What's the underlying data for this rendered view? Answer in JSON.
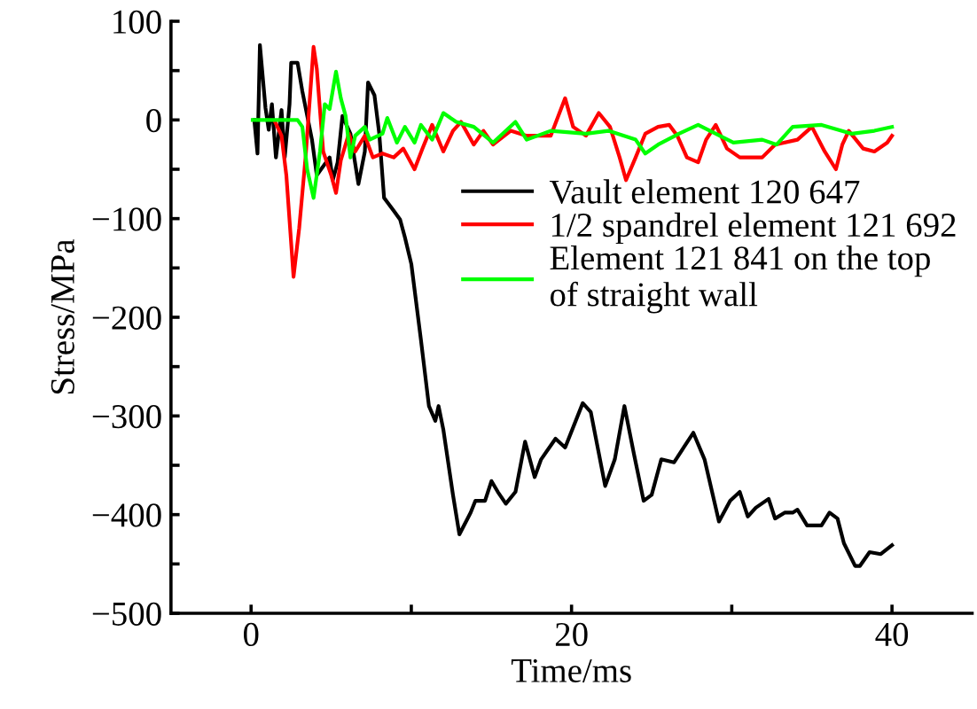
{
  "chart_data": {
    "type": "line",
    "xlabel": "Time/ms",
    "ylabel": "Stress/MPa",
    "xlim": [
      -5,
      45
    ],
    "ylim": [
      -500,
      100
    ],
    "xticks": [
      0,
      {
        "value": 10,
        "label": null
      },
      20,
      {
        "value": 30,
        "label": null
      },
      40
    ],
    "yticks": [
      {
        "value": -500,
        "label": "−500"
      },
      {
        "value": -450,
        "label": null
      },
      {
        "value": -400,
        "label": "−400"
      },
      {
        "value": -350,
        "label": null
      },
      {
        "value": -300,
        "label": "−300"
      },
      {
        "value": -250,
        "label": null
      },
      {
        "value": -200,
        "label": "−200"
      },
      {
        "value": -150,
        "label": null
      },
      {
        "value": -100,
        "label": "−100"
      },
      {
        "value": -50,
        "label": null
      },
      0,
      {
        "value": 50,
        "label": null
      },
      100
    ],
    "grid": false,
    "legend": "center right",
    "marker": "none",
    "line_style": "solid",
    "series": [
      {
        "name": "Vault element 120 647",
        "color": "#000000",
        "x": [
          0.2,
          0.4,
          0.55,
          0.9,
          1.1,
          1.3,
          1.55,
          1.9,
          2.1,
          2.4,
          2.5,
          2.9,
          3.2,
          3.8,
          4.1,
          4.9,
          5.1,
          5.4,
          5.7,
          6.2,
          6.7,
          7.1,
          7.3,
          7.7,
          8.0,
          8.3,
          8.9,
          9.3,
          9.6,
          10.0,
          10.6,
          11.1,
          11.5,
          11.7,
          12.0,
          12.6,
          13.0,
          13.7,
          14.0,
          14.6,
          15.0,
          15.4,
          15.9,
          16.5,
          17.1,
          17.7,
          18.1,
          19.0,
          19.6,
          20.7,
          21.2,
          22.1,
          22.7,
          23.3,
          23.9,
          24.5,
          25.0,
          25.6,
          26.4,
          27.0,
          27.6,
          28.3,
          29.2,
          29.9,
          30.5,
          31.0,
          31.5,
          32.3,
          32.7,
          33.3,
          33.8,
          34.1,
          34.7,
          35.6,
          36.1,
          36.6,
          37.0,
          37.7,
          38.0,
          38.6,
          39.3,
          40.0
        ],
        "values": [
          0,
          -34,
          76,
          12,
          -10,
          16,
          -38,
          10,
          -38,
          16,
          58,
          58,
          29,
          -20,
          -56,
          -38,
          -61,
          -43,
          4,
          -14,
          -65,
          -32,
          38,
          25,
          -14,
          -79,
          -92,
          -101,
          -119,
          -146,
          -223,
          -290,
          -305,
          -290,
          -314,
          -380,
          -420,
          -398,
          -386,
          -386,
          -366,
          -377,
          -389,
          -377,
          -326,
          -362,
          -344,
          -323,
          -332,
          -287,
          -296,
          -371,
          -344,
          -290,
          -339,
          -386,
          -380,
          -344,
          -347,
          -332,
          -317,
          -344,
          -407,
          -386,
          -377,
          -402,
          -393,
          -384,
          -404,
          -398,
          -398,
          -395,
          -411,
          -411,
          -398,
          -404,
          -429,
          -452,
          -452,
          -438,
          -440,
          -431
        ]
      },
      {
        "name": "1/2 spandrel element 121 692",
        "color": "#ff0000",
        "x": [
          1.5,
          1.9,
          2.2,
          2.65,
          3.0,
          3.4,
          3.9,
          4.1,
          4.5,
          5.0,
          5.3,
          5.6,
          6.1,
          6.5,
          7.1,
          7.6,
          8.2,
          8.9,
          9.5,
          10.2,
          10.7,
          11.3,
          12.0,
          12.6,
          13.1,
          13.9,
          14.5,
          15.1,
          16.2,
          17.2,
          18.7,
          19.6,
          20.1,
          20.9,
          21.7,
          22.4,
          23.0,
          23.4,
          24.0,
          24.6,
          25.4,
          26.1,
          26.6,
          27.2,
          27.9,
          28.4,
          29.0,
          29.7,
          30.5,
          31.9,
          32.7,
          34.1,
          35.0,
          35.8,
          36.5,
          36.9,
          37.3,
          38.2,
          38.9,
          39.7,
          40.0
        ],
        "values": [
          -2,
          -16,
          -56,
          -159,
          -110,
          -38,
          74,
          52,
          -32,
          -56,
          -74,
          -41,
          -14,
          -32,
          -16,
          -38,
          -34,
          -38,
          -29,
          -50,
          -29,
          -5,
          -32,
          -11,
          -2,
          -25,
          -11,
          -25,
          -11,
          -16,
          -16,
          22,
          -7,
          -16,
          7,
          -7,
          -38,
          -61,
          -38,
          -14,
          -7,
          -5,
          -16,
          -38,
          -43,
          -20,
          -5,
          -29,
          -38,
          -38,
          -25,
          -20,
          -7,
          -32,
          -50,
          -25,
          -11,
          -29,
          -32,
          -23,
          -16
        ]
      },
      {
        "name": "Element 121 841 on the top\nof straight wall",
        "color": "#00ff00",
        "x": [
          0.1,
          2.9,
          3.2,
          3.5,
          3.9,
          4.3,
          4.6,
          4.9,
          5.3,
          5.6,
          5.9,
          6.2,
          6.5,
          7.1,
          7.4,
          8.2,
          8.5,
          9.1,
          9.6,
          10.2,
          10.6,
          11.3,
          12.0,
          12.8,
          13.9,
          15.1,
          16.5,
          17.2,
          18.7,
          20.9,
          22.3,
          24.0,
          24.6,
          25.4,
          26.7,
          27.9,
          29.0,
          30.1,
          31.9,
          32.8,
          33.8,
          35.6,
          37.5,
          38.9,
          40.0
        ],
        "values": [
          0,
          0,
          -7,
          -50,
          -79,
          -32,
          16,
          11,
          49,
          22,
          4,
          -38,
          -16,
          -7,
          -20,
          -14,
          2,
          -23,
          -7,
          -23,
          -5,
          -20,
          7,
          -2,
          -7,
          -23,
          -2,
          -20,
          -11,
          -14,
          -11,
          -20,
          -34,
          -25,
          -14,
          -5,
          -14,
          -23,
          -20,
          -25,
          -7,
          -5,
          -14,
          -11,
          -7
        ]
      }
    ]
  }
}
